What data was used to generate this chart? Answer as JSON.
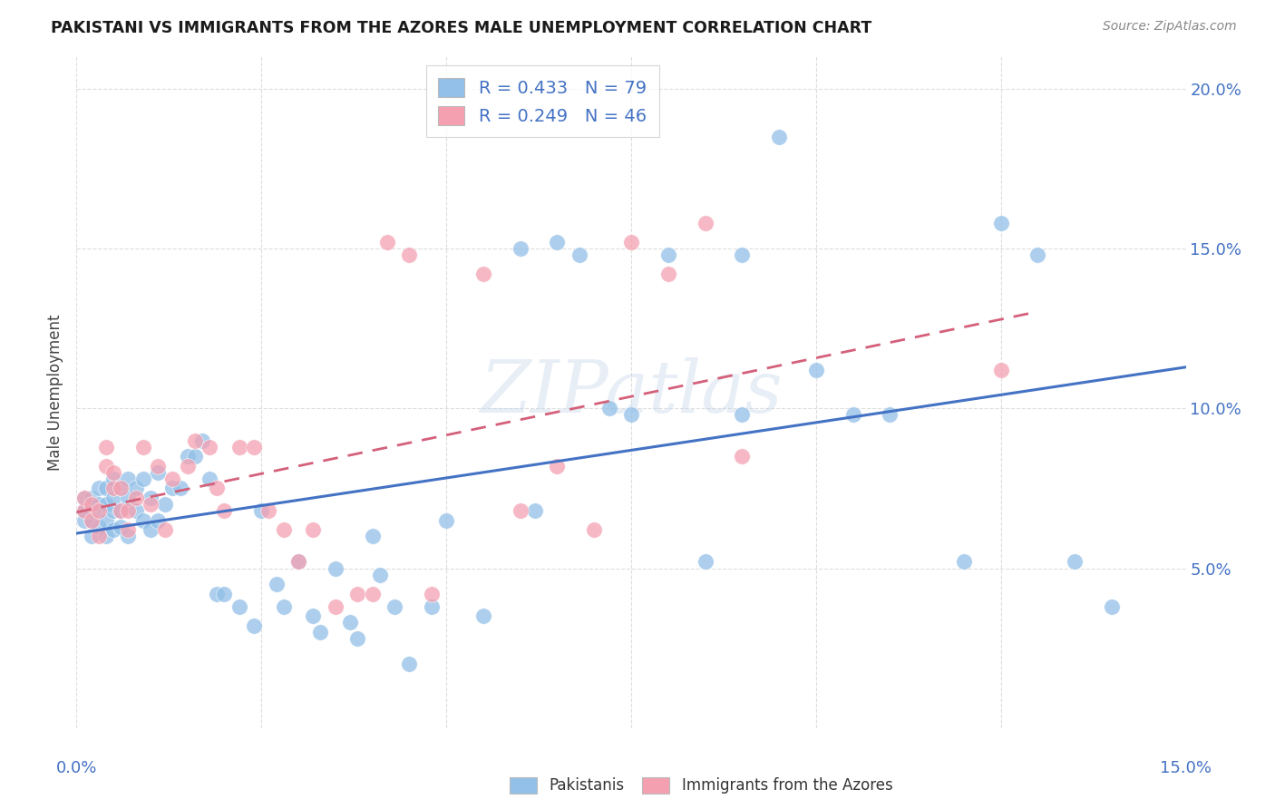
{
  "title": "PAKISTANI VS IMMIGRANTS FROM THE AZORES MALE UNEMPLOYMENT CORRELATION CHART",
  "source": "Source: ZipAtlas.com",
  "ylabel": "Male Unemployment",
  "xlim": [
    0.0,
    0.15
  ],
  "ylim": [
    0.0,
    0.21
  ],
  "ytick_vals": [
    0.05,
    0.1,
    0.15,
    0.2
  ],
  "ytick_labels": [
    "5.0%",
    "10.0%",
    "15.0%",
    "20.0%"
  ],
  "blue_color": "#92C0E8",
  "pink_color": "#F4A0B0",
  "blue_line_color": "#4472C4",
  "pink_line_color": "#D4607A",
  "r_pak": 0.433,
  "n_pak": 79,
  "r_az": 0.249,
  "n_az": 46,
  "pakistanis_x": [
    0.001,
    0.001,
    0.001,
    0.002,
    0.002,
    0.002,
    0.002,
    0.003,
    0.003,
    0.003,
    0.003,
    0.004,
    0.004,
    0.004,
    0.004,
    0.005,
    0.005,
    0.005,
    0.005,
    0.006,
    0.006,
    0.006,
    0.007,
    0.007,
    0.007,
    0.008,
    0.008,
    0.009,
    0.009,
    0.01,
    0.01,
    0.011,
    0.011,
    0.012,
    0.013,
    0.014,
    0.015,
    0.016,
    0.017,
    0.018,
    0.019,
    0.02,
    0.022,
    0.024,
    0.025,
    0.027,
    0.028,
    0.03,
    0.032,
    0.033,
    0.035,
    0.037,
    0.038,
    0.04,
    0.041,
    0.043,
    0.045,
    0.048,
    0.05,
    0.055,
    0.06,
    0.062,
    0.065,
    0.068,
    0.072,
    0.075,
    0.08,
    0.085,
    0.09,
    0.095,
    0.1,
    0.105,
    0.11,
    0.12,
    0.125,
    0.13,
    0.135,
    0.14,
    0.09
  ],
  "pakistanis_y": [
    0.065,
    0.068,
    0.072,
    0.06,
    0.065,
    0.068,
    0.072,
    0.063,
    0.068,
    0.07,
    0.075,
    0.06,
    0.065,
    0.07,
    0.075,
    0.062,
    0.068,
    0.072,
    0.078,
    0.063,
    0.068,
    0.075,
    0.06,
    0.072,
    0.078,
    0.068,
    0.075,
    0.065,
    0.078,
    0.062,
    0.072,
    0.065,
    0.08,
    0.07,
    0.075,
    0.075,
    0.085,
    0.085,
    0.09,
    0.078,
    0.042,
    0.042,
    0.038,
    0.032,
    0.068,
    0.045,
    0.038,
    0.052,
    0.035,
    0.03,
    0.05,
    0.033,
    0.028,
    0.06,
    0.048,
    0.038,
    0.02,
    0.038,
    0.065,
    0.035,
    0.15,
    0.068,
    0.152,
    0.148,
    0.1,
    0.098,
    0.148,
    0.052,
    0.098,
    0.185,
    0.112,
    0.098,
    0.098,
    0.052,
    0.158,
    0.148,
    0.052,
    0.038,
    0.148
  ],
  "azores_x": [
    0.001,
    0.001,
    0.002,
    0.002,
    0.003,
    0.003,
    0.004,
    0.004,
    0.005,
    0.005,
    0.006,
    0.006,
    0.007,
    0.007,
    0.008,
    0.009,
    0.01,
    0.011,
    0.012,
    0.013,
    0.015,
    0.016,
    0.018,
    0.019,
    0.02,
    0.022,
    0.024,
    0.026,
    0.028,
    0.03,
    0.032,
    0.035,
    0.038,
    0.04,
    0.042,
    0.045,
    0.048,
    0.055,
    0.06,
    0.065,
    0.07,
    0.075,
    0.08,
    0.085,
    0.09,
    0.125
  ],
  "azores_y": [
    0.068,
    0.072,
    0.065,
    0.07,
    0.06,
    0.068,
    0.082,
    0.088,
    0.075,
    0.08,
    0.068,
    0.075,
    0.062,
    0.068,
    0.072,
    0.088,
    0.07,
    0.082,
    0.062,
    0.078,
    0.082,
    0.09,
    0.088,
    0.075,
    0.068,
    0.088,
    0.088,
    0.068,
    0.062,
    0.052,
    0.062,
    0.038,
    0.042,
    0.042,
    0.152,
    0.148,
    0.042,
    0.142,
    0.068,
    0.082,
    0.062,
    0.152,
    0.142,
    0.158,
    0.085,
    0.112
  ]
}
